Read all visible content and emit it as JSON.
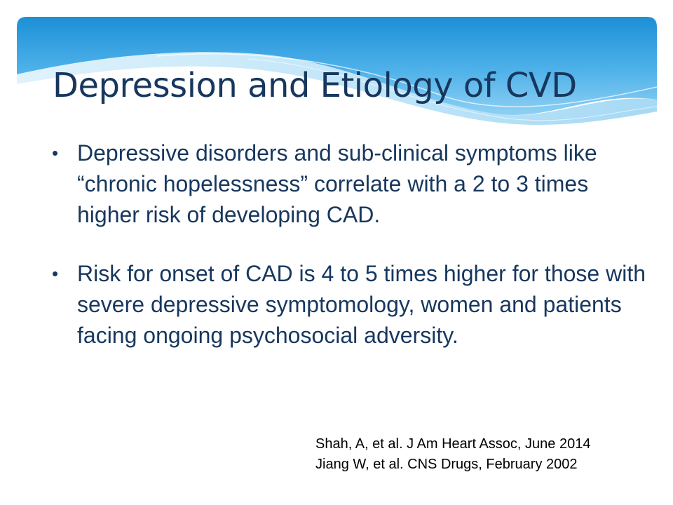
{
  "slide": {
    "title": "Depression and Etiology of CVD",
    "bullets": [
      {
        "marker": "•",
        "text": "Depressive disorders and sub-clinical symptoms like “chronic hopelessness” correlate with a 2 to 3 times higher risk of developing CAD."
      },
      {
        "marker": "•",
        "text": "Risk for onset of CAD is 4 to 5 times higher for those with severe depressive symptomology, women and patients facing ongoing psychosocial adversity."
      }
    ],
    "references": [
      "Shah, A, et al. J Am Heart Assoc, June 2014",
      "Jiang W, et al. CNS Drugs, February 2002"
    ]
  },
  "theme": {
    "title_color": "#17375e",
    "body_color": "#17375e",
    "banner_top_color": "#1c8fd6",
    "banner_mid_color": "#56b7ec",
    "banner_light_color": "#bfe4f8"
  }
}
